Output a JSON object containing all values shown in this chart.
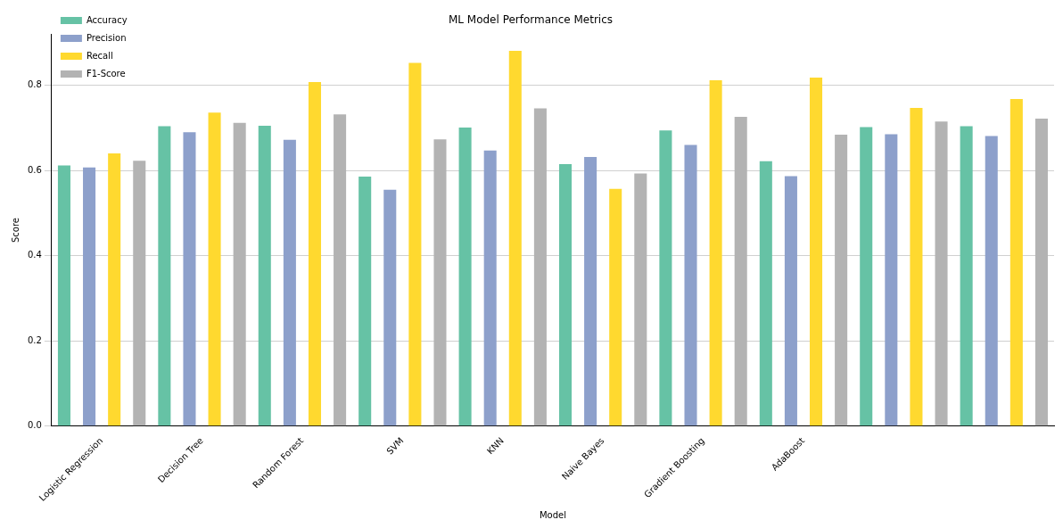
{
  "chart_data": {
    "type": "bar",
    "title": "ML Model Performance Metrics",
    "xlabel": "Model",
    "ylabel": "Score",
    "categories": [
      "Logistic Regression",
      "Decision Tree",
      "Random Forest",
      "SVM",
      "KNN",
      "Naive Bayes",
      "Gradient Boosting",
      "AdaBoost",
      null,
      null
    ],
    "series": [
      {
        "name": "Accuracy",
        "color": "#66c2a5",
        "values": [
          0.612,
          0.704,
          0.705,
          0.586,
          0.701,
          0.615,
          0.694,
          0.622,
          0.702,
          0.704
        ]
      },
      {
        "name": "Precision",
        "color": "#8da0cb",
        "values": [
          0.607,
          0.69,
          0.672,
          0.555,
          0.647,
          0.632,
          0.66,
          0.587,
          0.685,
          0.681
        ]
      },
      {
        "name": "Recall",
        "color": "#ffd92f",
        "values": [
          0.64,
          0.736,
          0.808,
          0.853,
          0.881,
          0.557,
          0.812,
          0.818,
          0.747,
          0.768
        ]
      },
      {
        "name": "F1-Score",
        "color": "#b3b3b3",
        "values": [
          0.623,
          0.712,
          0.732,
          0.673,
          0.746,
          0.593,
          0.726,
          0.684,
          0.715,
          0.722
        ]
      }
    ],
    "ylim": [
      0,
      0.92
    ],
    "yticks": [
      {
        "value": 0,
        "label": "0.0"
      },
      {
        "value": 0.2,
        "label": "0.2"
      },
      {
        "value": 0.4,
        "label": "0.4"
      },
      {
        "value": 0.6,
        "label": "0.6"
      },
      {
        "value": 0.8,
        "label": "0.8"
      }
    ],
    "grid": "y",
    "legend": "top left"
  }
}
